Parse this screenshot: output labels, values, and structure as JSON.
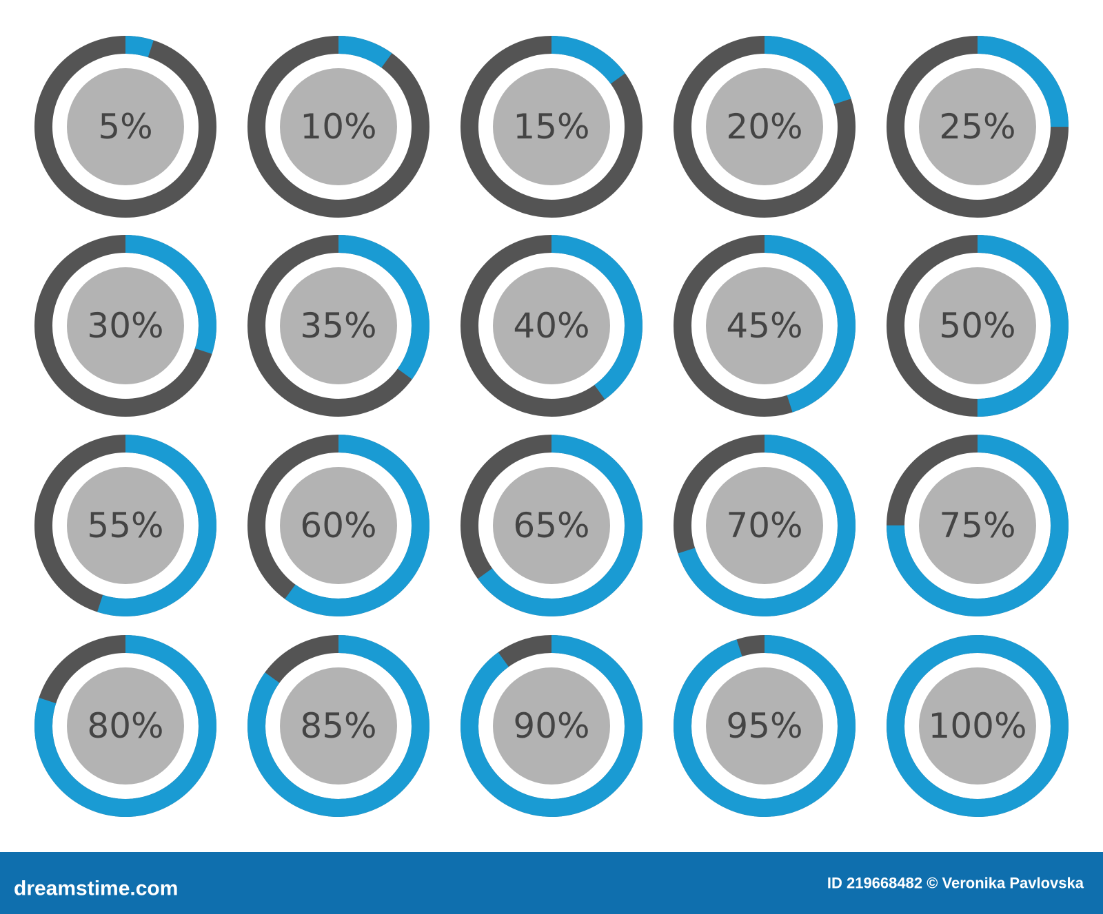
{
  "chart_data": {
    "type": "progress",
    "values": [
      5,
      10,
      15,
      20,
      25,
      30,
      35,
      40,
      45,
      50,
      55,
      60,
      65,
      70,
      75,
      80,
      85,
      90,
      95,
      100
    ],
    "value_labels": [
      "5%",
      "10%",
      "15%",
      "20%",
      "25%",
      "30%",
      "35%",
      "40%",
      "45%",
      "50%",
      "55%",
      "60%",
      "65%",
      "70%",
      "75%",
      "80%",
      "85%",
      "90%",
      "95%",
      "100%"
    ],
    "ylim": [
      0,
      100
    ],
    "color": "#1a9bd3",
    "track_color": "#545454",
    "center_color": "#b3b3b3"
  },
  "footer": {
    "logo": "dreamstime.com",
    "credit": "ID 219668482 © Veronika Pavlovska"
  }
}
